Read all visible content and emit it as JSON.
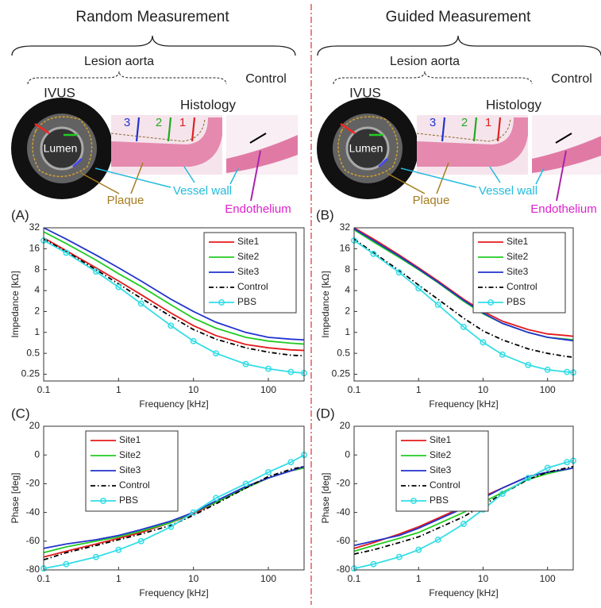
{
  "illustrations": [
    {
      "title": "Random Measurement",
      "group": "Lesion aorta",
      "control": "Control",
      "ivus": "IVUS",
      "histology": "Histology",
      "lumen": "Lumen",
      "sites": [
        "3",
        "2",
        "1"
      ],
      "plaque": "Plaque",
      "vessel_wall": "Vessel wall",
      "endothelium": "Endothelium"
    },
    {
      "title": "Guided Measurement",
      "group": "Lesion aorta",
      "control": "Control",
      "ivus": "IVUS",
      "histology": "Histology",
      "lumen": "Lumen",
      "sites": [
        "3",
        "2",
        "1"
      ],
      "plaque": "Plaque",
      "vessel_wall": "Vessel wall",
      "endothelium": "Endothelium"
    }
  ],
  "chart_data": [
    {
      "type": "line",
      "label": "(A)",
      "xlabel": "Frequency [kHz]",
      "ylabel": "Impedance [kΩ]",
      "xscale": "log",
      "yscale": "log",
      "xlim": [
        0.1,
        300
      ],
      "ylim": [
        0.2,
        32
      ],
      "xticks": [
        0.1,
        1,
        10,
        100
      ],
      "yticks": [
        0.25,
        0.5,
        1,
        2,
        4,
        8,
        16,
        32
      ],
      "legend": "upper right",
      "x": [
        0.1,
        0.2,
        0.5,
        1,
        2,
        5,
        10,
        20,
        50,
        100,
        200,
        300
      ],
      "series": [
        {
          "name": "Site1",
          "color": "#e41a1c",
          "values": [
            23,
            15,
            8.5,
            5.5,
            3.5,
            1.9,
            1.25,
            0.9,
            0.67,
            0.6,
            0.56,
            0.55
          ]
        },
        {
          "name": "Site2",
          "color": "#22cc22",
          "values": [
            28,
            19,
            11,
            7,
            4.6,
            2.5,
            1.6,
            1.15,
            0.85,
            0.75,
            0.7,
            0.68
          ]
        },
        {
          "name": "Site3",
          "color": "#2233cc",
          "values": [
            32,
            22,
            13,
            8.5,
            5.5,
            3,
            2,
            1.4,
            1.0,
            0.85,
            0.8,
            0.78
          ]
        },
        {
          "name": "Control",
          "color": "#000000",
          "linestyle": "-.",
          "values": [
            22,
            14.5,
            8,
            5,
            3.1,
            1.7,
            1.1,
            0.8,
            0.6,
            0.52,
            0.47,
            0.46
          ]
        },
        {
          "name": "PBS",
          "color": "#33dde6",
          "marker": "o",
          "values": [
            21,
            14,
            7.5,
            4.5,
            2.6,
            1.25,
            0.75,
            0.5,
            0.35,
            0.3,
            0.27,
            0.26
          ]
        }
      ]
    },
    {
      "type": "line",
      "label": "(B)",
      "xlabel": "Frequency [kHz]",
      "ylabel": "Impedance [kΩ]",
      "xscale": "log",
      "yscale": "log",
      "xlim": [
        0.1,
        250
      ],
      "ylim": [
        0.2,
        32
      ],
      "xticks": [
        0.1,
        1,
        10,
        100
      ],
      "yticks": [
        0.25,
        0.5,
        1,
        2,
        4,
        8,
        16,
        32
      ],
      "legend": "upper right",
      "x": [
        0.1,
        0.2,
        0.5,
        1,
        2,
        5,
        10,
        20,
        50,
        100,
        200,
        250
      ],
      "series": [
        {
          "name": "Site1",
          "color": "#e41a1c",
          "values": [
            32,
            22,
            13,
            8.5,
            5.5,
            3,
            2,
            1.45,
            1.1,
            0.95,
            0.9,
            0.88
          ]
        },
        {
          "name": "Site2",
          "color": "#22cc22",
          "values": [
            30,
            20,
            12,
            8,
            5.2,
            2.8,
            1.85,
            1.35,
            1.0,
            0.85,
            0.8,
            0.78
          ]
        },
        {
          "name": "Site3",
          "color": "#2233cc",
          "values": [
            31,
            21,
            12.5,
            8.2,
            5.3,
            2.9,
            1.9,
            1.35,
            1.0,
            0.85,
            0.78,
            0.76
          ]
        },
        {
          "name": "Control",
          "color": "#000000",
          "linestyle": "-.",
          "values": [
            22,
            14,
            7.8,
            4.8,
            3,
            1.6,
            1.05,
            0.78,
            0.58,
            0.5,
            0.45,
            0.44
          ]
        },
        {
          "name": "PBS",
          "color": "#33dde6",
          "marker": "o",
          "values": [
            21,
            13.5,
            7.3,
            4.3,
            2.5,
            1.2,
            0.72,
            0.48,
            0.34,
            0.29,
            0.27,
            0.265
          ]
        }
      ]
    },
    {
      "type": "line",
      "label": "(C)",
      "xlabel": "Frequency [kHz]",
      "ylabel": "Phase [deg]",
      "xscale": "log",
      "yscale": "linear",
      "xlim": [
        0.1,
        300
      ],
      "ylim": [
        -80,
        20
      ],
      "xticks": [
        0.1,
        1,
        10,
        100
      ],
      "yticks": [
        -80,
        -60,
        -40,
        -20,
        0,
        20
      ],
      "legend": "upper left",
      "x": [
        0.1,
        0.2,
        0.5,
        1,
        2,
        5,
        10,
        20,
        50,
        100,
        200,
        300
      ],
      "series": [
        {
          "name": "Site1",
          "color": "#e41a1c",
          "values": [
            -71,
            -67,
            -62,
            -58,
            -54,
            -47,
            -41,
            -33,
            -23,
            -16,
            -11,
            -9
          ]
        },
        {
          "name": "Site2",
          "color": "#22cc22",
          "values": [
            -68,
            -64,
            -60,
            -57,
            -53,
            -47,
            -40,
            -33,
            -23,
            -16,
            -11,
            -9
          ]
        },
        {
          "name": "Site3",
          "color": "#2233cc",
          "values": [
            -65,
            -62,
            -59,
            -56,
            -52,
            -46,
            -40,
            -32,
            -22,
            -16,
            -11,
            -8
          ]
        },
        {
          "name": "Control",
          "color": "#000000",
          "linestyle": "-.",
          "values": [
            -73,
            -68,
            -63,
            -59,
            -55,
            -49,
            -42,
            -34,
            -23,
            -15,
            -10,
            -8
          ]
        },
        {
          "name": "PBS",
          "color": "#33dde6",
          "marker": "o",
          "values": [
            -79,
            -76,
            -71,
            -66,
            -60,
            -50,
            -40,
            -30,
            -20,
            -12,
            -5,
            0
          ]
        }
      ]
    },
    {
      "type": "line",
      "label": "(D)",
      "xlabel": "Frequency [kHz]",
      "ylabel": "Phase [deg]",
      "xscale": "log",
      "yscale": "linear",
      "xlim": [
        0.1,
        250
      ],
      "ylim": [
        -80,
        20
      ],
      "xticks": [
        0.1,
        1,
        10,
        100
      ],
      "yticks": [
        -80,
        -60,
        -40,
        -20,
        0,
        20
      ],
      "legend": "upper left",
      "x": [
        0.1,
        0.2,
        0.5,
        1,
        2,
        5,
        10,
        20,
        50,
        100,
        200,
        250
      ],
      "series": [
        {
          "name": "Site1",
          "color": "#e41a1c",
          "values": [
            -65,
            -61,
            -55,
            -50,
            -44,
            -36,
            -29,
            -23,
            -15,
            -12,
            -10,
            -9
          ]
        },
        {
          "name": "Site2",
          "color": "#22cc22",
          "values": [
            -67,
            -63,
            -58,
            -54,
            -48,
            -40,
            -33,
            -26,
            -17,
            -13,
            -10,
            -9
          ]
        },
        {
          "name": "Site3",
          "color": "#2233cc",
          "values": [
            -63,
            -60,
            -56,
            -51,
            -45,
            -37,
            -30,
            -23,
            -15,
            -12,
            -10,
            -9
          ]
        },
        {
          "name": "Control",
          "color": "#000000",
          "linestyle": "-.",
          "values": [
            -69,
            -66,
            -61,
            -57,
            -51,
            -43,
            -35,
            -27,
            -17,
            -12,
            -9,
            -8
          ]
        },
        {
          "name": "PBS",
          "color": "#33dde6",
          "marker": "o",
          "values": [
            -79,
            -76,
            -71,
            -66,
            -59,
            -48,
            -38,
            -27,
            -16,
            -9,
            -5,
            -4
          ]
        }
      ]
    }
  ]
}
